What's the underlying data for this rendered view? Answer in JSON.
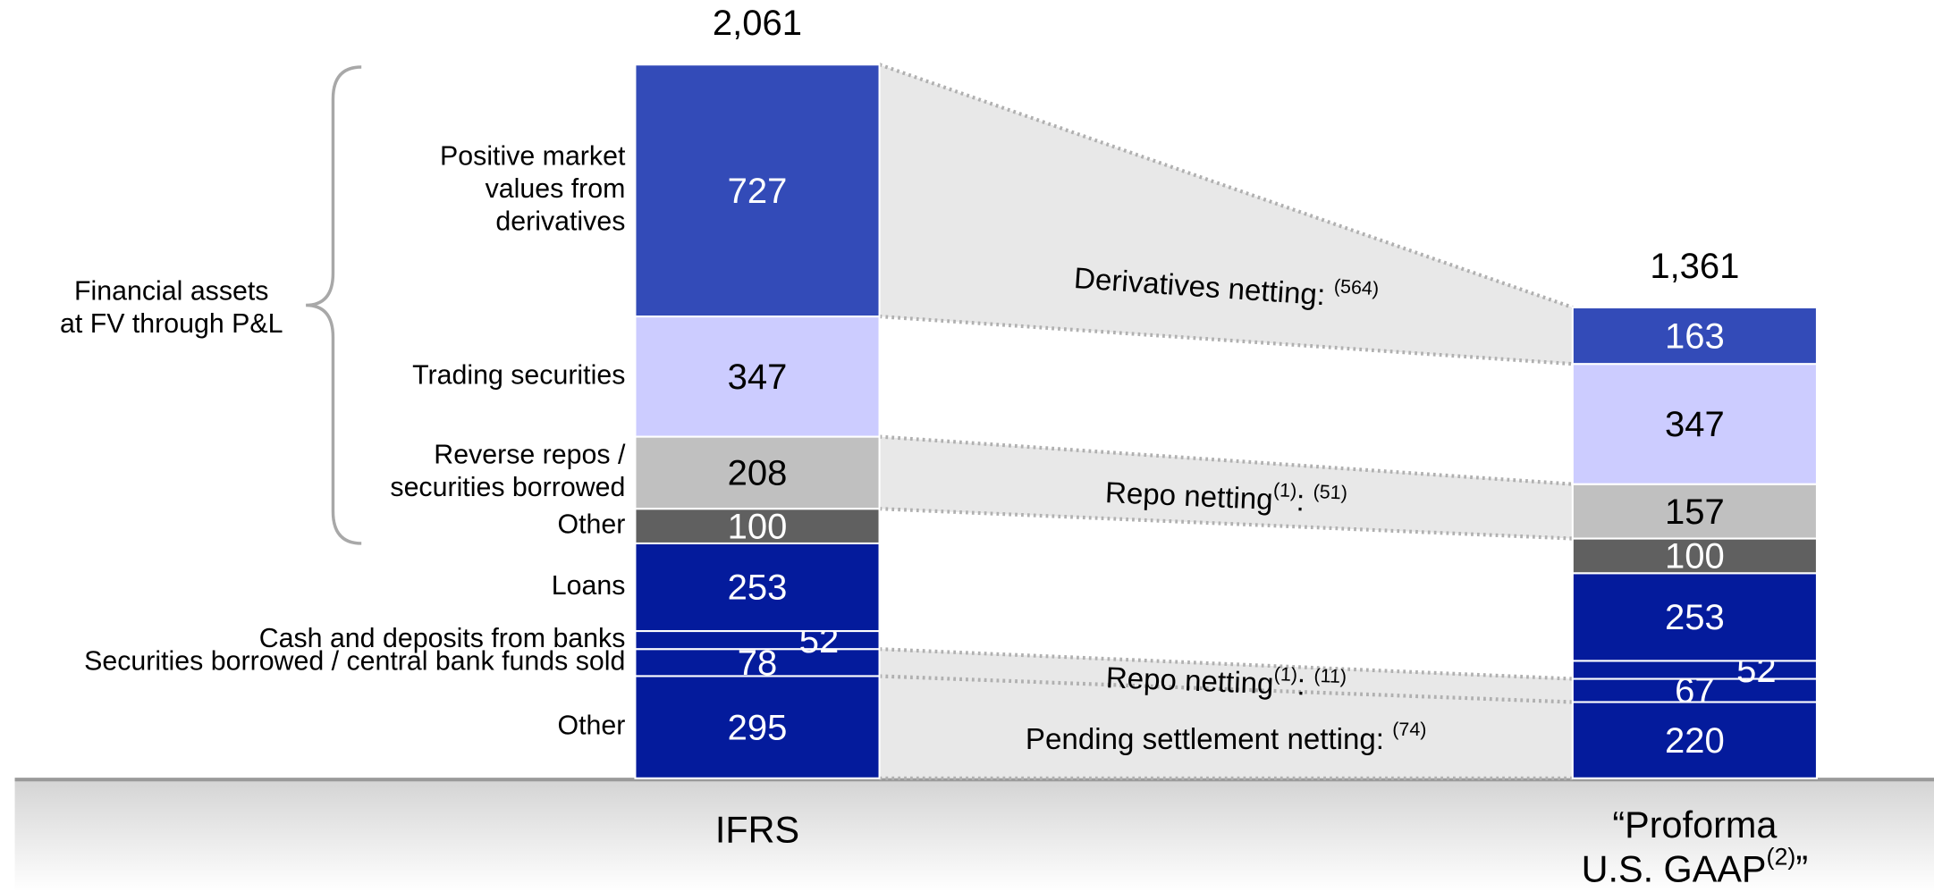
{
  "chart_data": {
    "type": "bar",
    "stacked": true,
    "categories": [
      "IFRS",
      "“Proforma\nU.S. GAAP(2)”"
    ],
    "totals": [
      2061,
      1361
    ],
    "total_labels": [
      "2,061",
      "1,361"
    ],
    "group_label": "Financial assets\nat FV through P&L",
    "series": [
      {
        "name": "Other",
        "color": "#041b9c",
        "values": [
          295,
          220
        ],
        "netting": {
          "label": "Pending settlement netting: (74)",
          "value": -74
        }
      },
      {
        "name": "Securities borrowed / central bank funds sold",
        "color": "#041b9c",
        "values": [
          78,
          67
        ],
        "netting": {
          "label": "Repo netting(1): (11)",
          "value": -11
        }
      },
      {
        "name": "Cash and deposits from banks",
        "color": "#041b9c",
        "values": [
          52,
          52
        ]
      },
      {
        "name": "Loans",
        "color": "#041b9c",
        "values": [
          253,
          253
        ]
      },
      {
        "name": "Other",
        "color": "#606060",
        "values": [
          100,
          100
        ]
      },
      {
        "name": "Reverse repos /\nsecurities borrowed",
        "color": "#c0c0c0",
        "values": [
          208,
          157
        ],
        "netting": {
          "label": "Repo netting(1): (51)",
          "value": -51
        }
      },
      {
        "name": "Trading securities",
        "color": "#ccccff",
        "values": [
          347,
          347
        ]
      },
      {
        "name": "Positive market\nvalues from\nderivatives",
        "color": "#334bb8",
        "values": [
          727,
          163
        ],
        "netting": {
          "label": "Derivatives netting: (564)",
          "value": -564
        }
      }
    ]
  }
}
